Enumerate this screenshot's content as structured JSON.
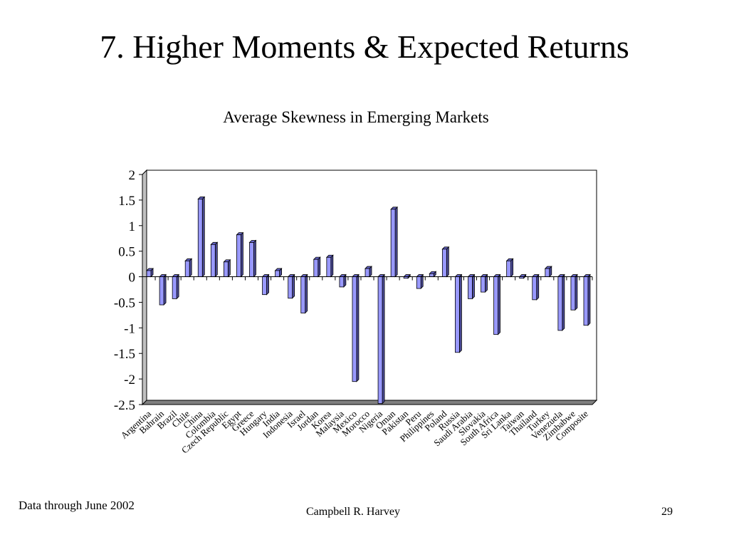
{
  "slide": {
    "title": "7. Higher Moments & Expected Returns",
    "footer_note": "Data through June 2002",
    "author": "Campbell R. Harvey",
    "page_number": "29"
  },
  "chart_data": {
    "type": "bar",
    "title": "Average Skewness in Emerging Markets",
    "xlabel": "",
    "ylabel": "",
    "ylim": [
      -2.5,
      2
    ],
    "y_ticks": [
      "2",
      "1.5",
      "1",
      "0.5",
      "0",
      "-0.5",
      "-1",
      "-1.5",
      "-2",
      "-2.5"
    ],
    "grid": true,
    "legend": "none",
    "bar_color": "#9999ff",
    "categories": [
      "Argentina",
      "Bahrain",
      "Brazil",
      "Chile",
      "China",
      "Colombia",
      "Czech Republic",
      "Egypt",
      "Greece",
      "Hungary",
      "India",
      "Indonesia",
      "Israel",
      "Jordan",
      "Korea",
      "Malaysia",
      "Mexico",
      "Morocco",
      "Nigeria",
      "Oman",
      "Pakistan",
      "Peru",
      "Philippines",
      "Poland",
      "Russia",
      "Saudi Arabia",
      "Slovakia",
      "South Africa",
      "Sri Lanka",
      "Taiwan",
      "Thailand",
      "Turkey",
      "Venezuela",
      "Zimbabwe",
      "Composite"
    ],
    "values": [
      0.12,
      -0.55,
      -0.43,
      0.31,
      1.52,
      0.63,
      0.29,
      0.82,
      0.67,
      -0.35,
      0.12,
      -0.42,
      -0.71,
      0.34,
      0.38,
      -0.2,
      -2.05,
      0.16,
      -2.48,
      1.32,
      -0.03,
      -0.23,
      0.06,
      0.54,
      -1.48,
      -0.43,
      -0.3,
      -1.13,
      0.31,
      -0.03,
      -0.45,
      0.16,
      -1.05,
      -0.65,
      -0.95
    ]
  }
}
